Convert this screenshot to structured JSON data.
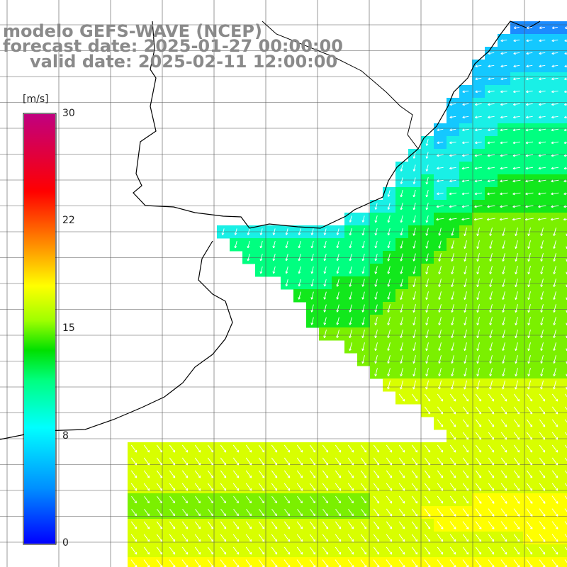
{
  "header": {
    "line1": "modelo GEFS-WAVE (NCEP)",
    "line2": "forecast date: 2025-01-27 00:00:00",
    "line3": "valid date: 2025-02-11 12:00:00"
  },
  "colorbar": {
    "unit": "[m/s]",
    "ticks": [
      "30",
      "22",
      "15",
      "8",
      "0"
    ],
    "tick_values": [
      30,
      22,
      15,
      8,
      0
    ],
    "min": 0,
    "max": 30,
    "colors": [
      "#0000ff",
      "#00a0ff",
      "#00ffff",
      "#00ff80",
      "#00e000",
      "#80ff00",
      "#ffff00",
      "#ff8000",
      "#ff0000",
      "#c00080"
    ]
  },
  "map": {
    "ocean_cmap": [
      "#0050ff",
      "#1b8bff",
      "#14c8ff",
      "#19f0e6",
      "#00ff80",
      "#12e81c",
      "#7bf000",
      "#d8ff00",
      "#ffff00"
    ],
    "land_color": "#ffffff",
    "grid_color": "#555555",
    "arrow_color": "#ffffff",
    "field_description": "wind speed (m/s) with wind direction arrows"
  }
}
